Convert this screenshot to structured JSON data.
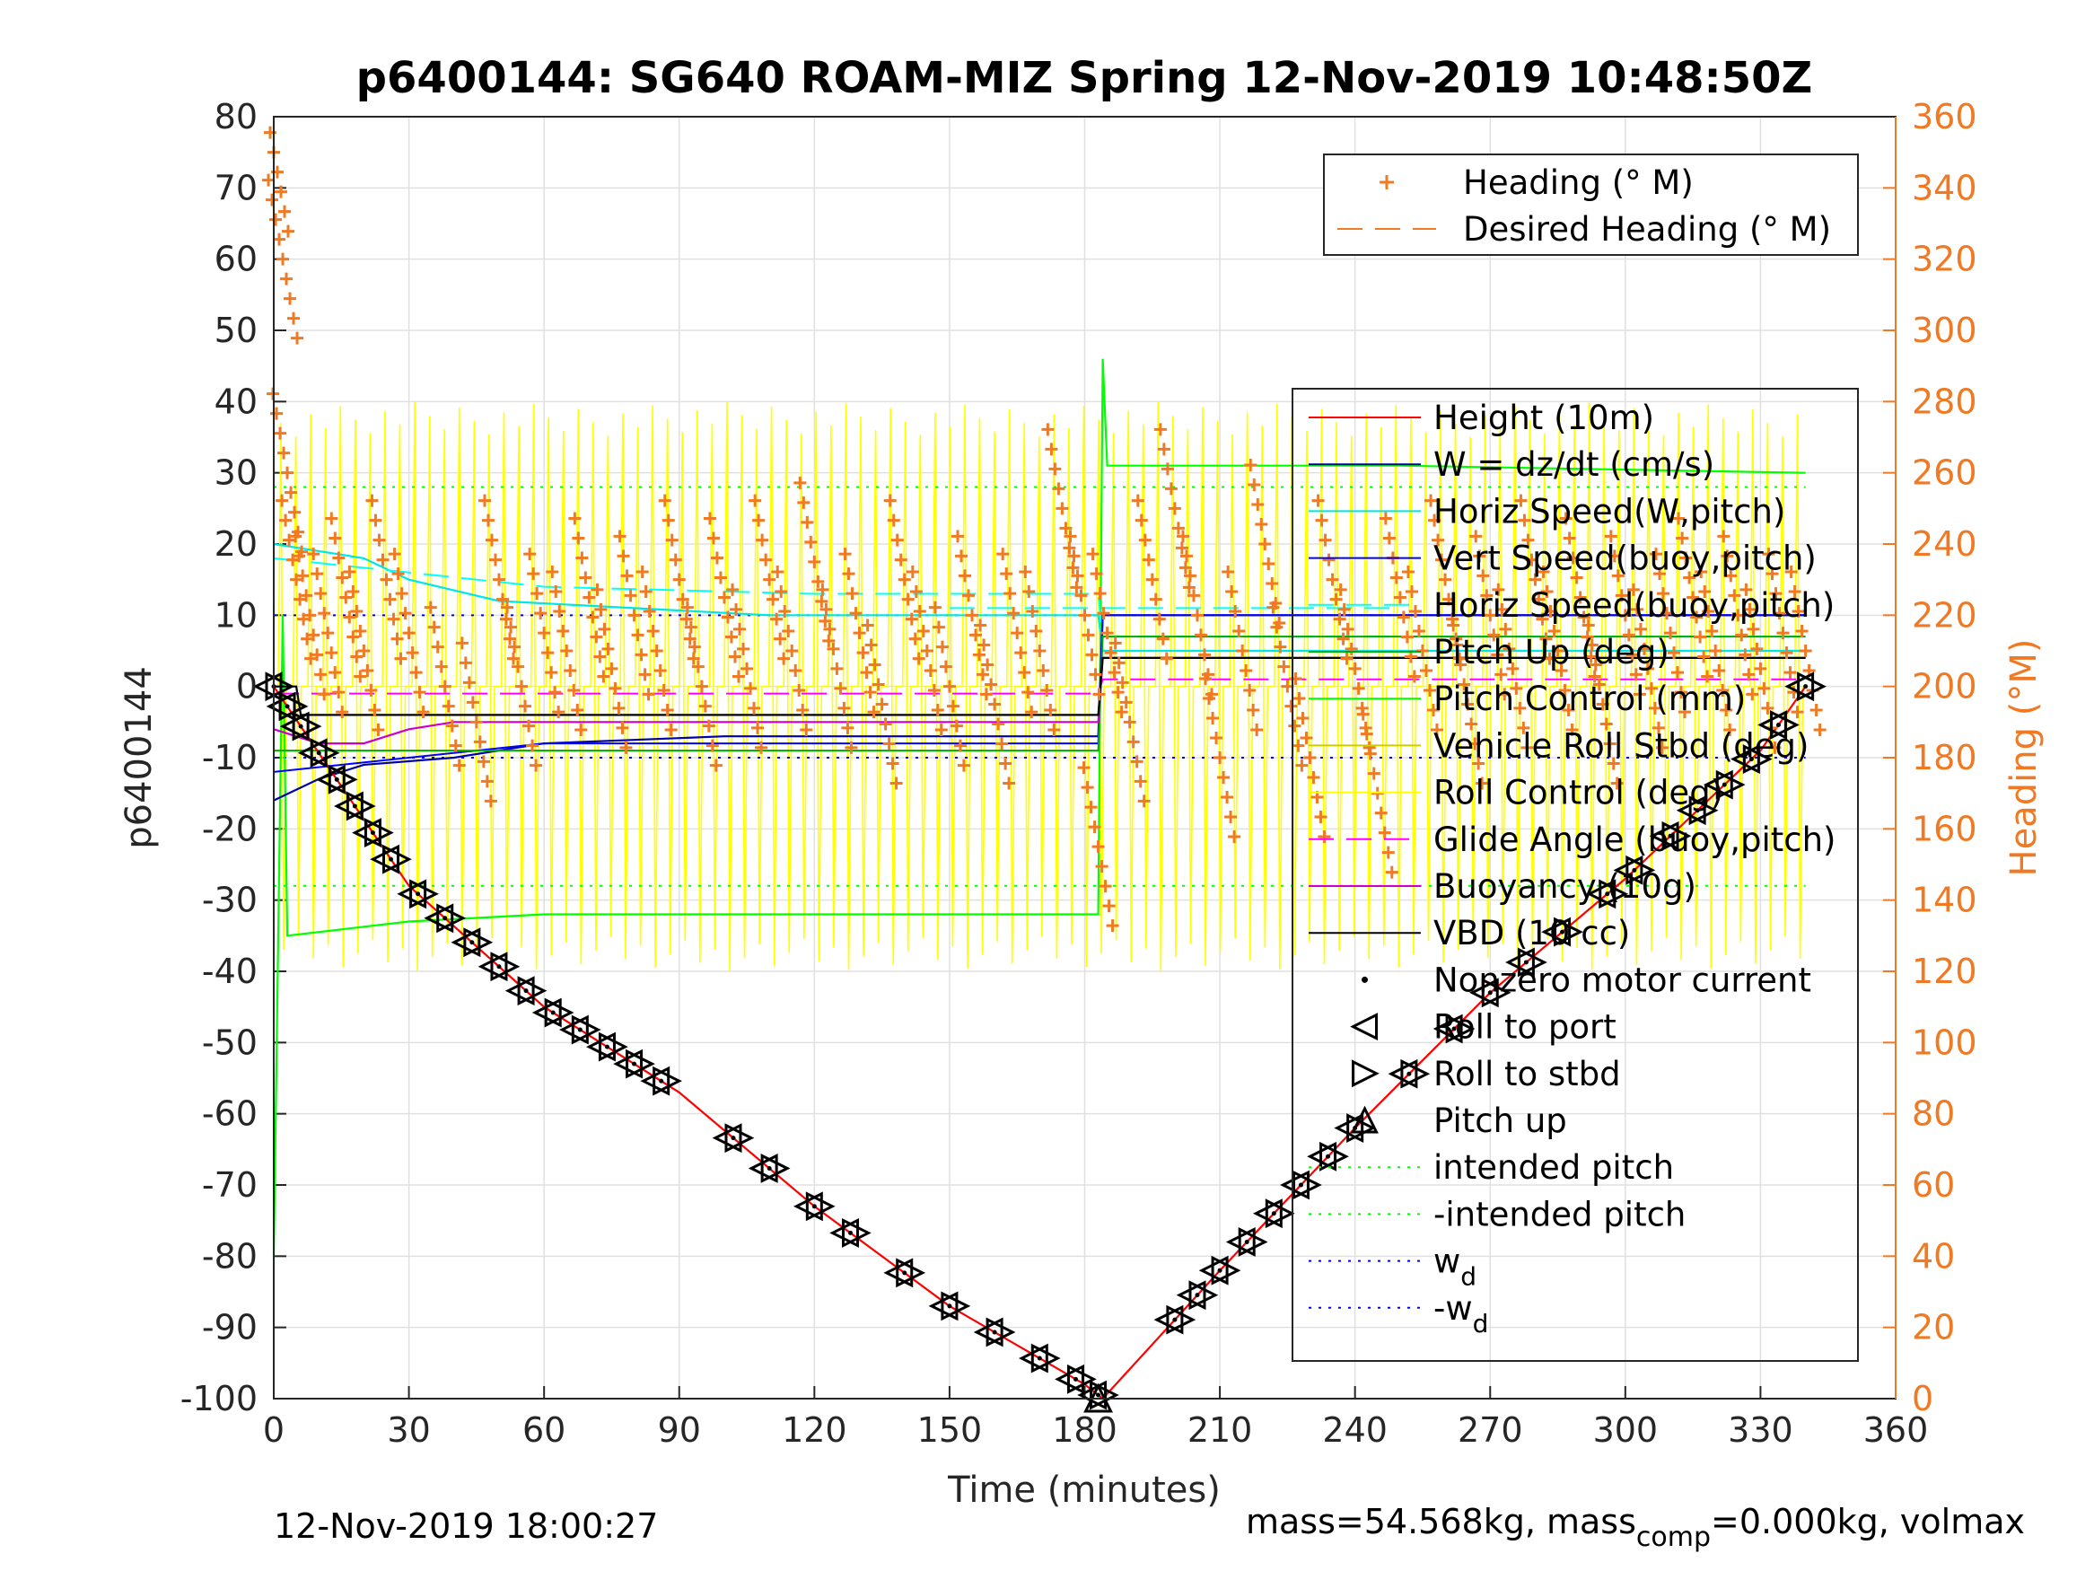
{
  "chart_data": {
    "type": "line",
    "title": "p6400144: SG640 ROAM-MIZ Spring 12-Nov-2019 10:48:50Z",
    "xlabel": "Time (minutes)",
    "ylabel": "p6400144",
    "y2label": "Heading (°M)",
    "xlim": [
      0,
      360
    ],
    "ylim": [
      -100,
      80
    ],
    "y2lim": [
      0,
      360
    ],
    "xticks": [
      "0",
      "30",
      "60",
      "90",
      "120",
      "150",
      "180",
      "210",
      "240",
      "270",
      "300",
      "330",
      "360"
    ],
    "yticks": [
      "80",
      "70",
      "60",
      "50",
      "40",
      "30",
      "20",
      "10",
      "0",
      "-10",
      "-20",
      "-30",
      "-40",
      "-50",
      "-60",
      "-70",
      "-80",
      "-90",
      "-100"
    ],
    "y2ticks": [
      "360",
      "340",
      "320",
      "300",
      "280",
      "260",
      "240",
      "220",
      "200",
      "180",
      "160",
      "140",
      "120",
      "100",
      "80",
      "60",
      "40",
      "20",
      "0"
    ],
    "grid": true,
    "legend_top": [
      {
        "name": "Heading (° M)",
        "color": "#f07a24",
        "style": "plus"
      },
      {
        "name": "Desired Heading (° M)",
        "color": "#f07a24",
        "style": "dash"
      }
    ],
    "legend_main": [
      {
        "name": "Height (10m)",
        "color": "#ff0000",
        "style": "line"
      },
      {
        "name": "W = dz/dt (cm/s)",
        "color": "#0000aa",
        "style": "line"
      },
      {
        "name": "Horiz Speed(W,pitch)",
        "color": "#00e5e5",
        "style": "line"
      },
      {
        "name": "Vert Speed(buoy,pitch)",
        "color": "#0000ff",
        "style": "line"
      },
      {
        "name": "Horiz Speed(buoy,pitch)",
        "color": "#00ffff",
        "style": "dash"
      },
      {
        "name": "Pitch Up (deg)",
        "color": "#00aa00",
        "style": "line"
      },
      {
        "name": "Pitch Control (mm)",
        "color": "#00ff00",
        "style": "line"
      },
      {
        "name": "Vehicle Roll Stbd (deg)",
        "color": "#cccc00",
        "style": "line"
      },
      {
        "name": "Roll Control (deg)",
        "color": "#ffff00",
        "style": "line"
      },
      {
        "name": "Glide Angle (buoy,pitch)",
        "color": "#ff00ff",
        "style": "dash"
      },
      {
        "name": "Buoyancy (10g)",
        "color": "#cc00cc",
        "style": "line"
      },
      {
        "name": "VBD (10 cc)",
        "color": "#000000",
        "style": "line"
      },
      {
        "name": "Nonzero motor current",
        "color": "#000000",
        "style": "dot"
      },
      {
        "name": "Roll to port",
        "color": "#000000",
        "style": "tri-left"
      },
      {
        "name": "Roll to stbd",
        "color": "#000000",
        "style": "tri-right"
      },
      {
        "name": "Pitch up",
        "color": "#000000",
        "style": "tri-up"
      },
      {
        "name": "intended pitch",
        "color": "#00ff00",
        "style": "dot-line"
      },
      {
        "name": "-intended pitch",
        "color": "#00ff00",
        "style": "dot-line"
      },
      {
        "name": "w",
        "sub": "d",
        "color": "#0000ff",
        "style": "dot-line"
      },
      {
        "name": "-w",
        "sub": "d",
        "color": "#0000ff",
        "style": "dot-line"
      }
    ],
    "series": {
      "height": {
        "x": [
          0,
          30,
          60,
          90,
          120,
          150,
          180,
          184,
          210,
          240,
          270,
          300,
          330,
          340
        ],
        "y": [
          0,
          -28,
          -45,
          -57,
          -73,
          -87,
          -98,
          -100,
          -82,
          -62,
          -43,
          -27,
          -9,
          0
        ]
      },
      "vbd": {
        "x": [
          0,
          5,
          6,
          183,
          184,
          340
        ],
        "y": [
          0,
          0,
          -4,
          -4,
          4,
          4
        ]
      },
      "buoyancy": {
        "x": [
          0,
          10,
          20,
          30,
          40,
          60,
          100,
          183,
          184,
          340
        ],
        "y": [
          -6,
          -8,
          -8,
          -6,
          -5,
          -5,
          -5,
          -5,
          4,
          4
        ]
      },
      "glide_angle": {
        "x": [
          0,
          183,
          184,
          340
        ],
        "y": [
          -1,
          -1,
          1,
          1
        ]
      },
      "horiz_speed_w": {
        "x": [
          0,
          10,
          20,
          30,
          50,
          80,
          110,
          150,
          183,
          184,
          250,
          340
        ],
        "y": [
          20,
          19,
          18,
          15,
          12,
          11,
          10,
          10,
          10,
          5,
          5,
          5
        ]
      },
      "w": {
        "x": [
          0,
          10,
          20,
          40,
          60,
          100,
          150,
          183,
          184,
          250,
          340
        ],
        "y": [
          -16,
          -13,
          -11,
          -10,
          -8,
          -7,
          -7,
          -7,
          10,
          10,
          10
        ]
      },
      "vert_speed": {
        "x": [
          0,
          30,
          60,
          120,
          183,
          184,
          340
        ],
        "y": [
          -12,
          -10,
          -8,
          -8,
          -8,
          10,
          10
        ]
      },
      "horiz_speed_buoy": {
        "x": [
          0,
          60,
          120,
          183,
          184,
          340
        ],
        "y": [
          18,
          14,
          13,
          13,
          7,
          7
        ]
      },
      "pitch_control": {
        "x": [
          0,
          2,
          3,
          30,
          60,
          120,
          183,
          184,
          185,
          250,
          340
        ],
        "y": [
          -80,
          10,
          -35,
          -33,
          -32,
          -32,
          -32,
          46,
          31,
          31,
          30
        ]
      },
      "pitch_up": {
        "x": [
          0,
          183,
          184,
          340
        ],
        "y": [
          -9,
          -9,
          7,
          7
        ]
      },
      "intended_pitch": 28,
      "wd": 10,
      "desired_heading": 222,
      "heading": {
        "x": [
          0,
          2,
          3,
          5,
          8,
          12,
          16,
          20,
          25,
          30,
          38,
          45,
          50,
          55,
          60,
          65,
          70,
          75,
          80,
          85,
          90,
          95,
          100,
          105,
          110,
          115,
          120,
          125,
          130,
          135,
          140,
          145,
          150,
          155,
          160,
          165,
          170,
          175,
          180,
          183,
          185,
          190,
          195,
          200,
          205,
          210,
          215,
          220,
          225,
          230,
          235,
          240,
          245,
          250,
          255,
          260,
          265,
          270,
          275,
          280,
          285,
          290,
          295,
          300,
          305,
          310,
          315,
          320,
          325,
          330,
          335,
          340
        ],
        "y": [
          350,
          320,
          260,
          230,
          220,
          215,
          225,
          210,
          230,
          215,
          200,
          190,
          230,
          200,
          215,
          210,
          225,
          205,
          220,
          210,
          230,
          200,
          225,
          205,
          230,
          210,
          235,
          205,
          215,
          195,
          230,
          210,
          200,
          220,
          195,
          215,
          210,
          250,
          220,
          155,
          215,
          190,
          230,
          250,
          220,
          180,
          210,
          240,
          200,
          180,
          230,
          205,
          170,
          225,
          210,
          230,
          195,
          220,
          205,
          230,
          210,
          225,
          195,
          220,
          205,
          215,
          225,
          210,
          220,
          205,
          215,
          210
        ]
      },
      "motor_events_down": [
        0,
        3,
        6,
        10,
        14,
        18,
        22,
        26,
        32,
        38,
        44,
        50,
        56,
        62,
        68,
        74,
        80,
        86,
        102,
        110,
        120,
        128,
        140,
        150,
        160,
        170,
        178,
        183
      ],
      "motor_events_up": [
        200,
        205,
        210,
        216,
        222,
        228,
        234,
        240,
        252,
        262,
        270,
        278,
        286,
        296,
        302,
        310,
        316,
        322,
        328,
        334,
        340
      ]
    },
    "footer_left": "12-Nov-2019 18:00:27",
    "footer_right_prefix": "mass=54.568kg, mass",
    "footer_right_sub": "comp",
    "footer_right_suffix": "=0.000kg, volmax"
  }
}
